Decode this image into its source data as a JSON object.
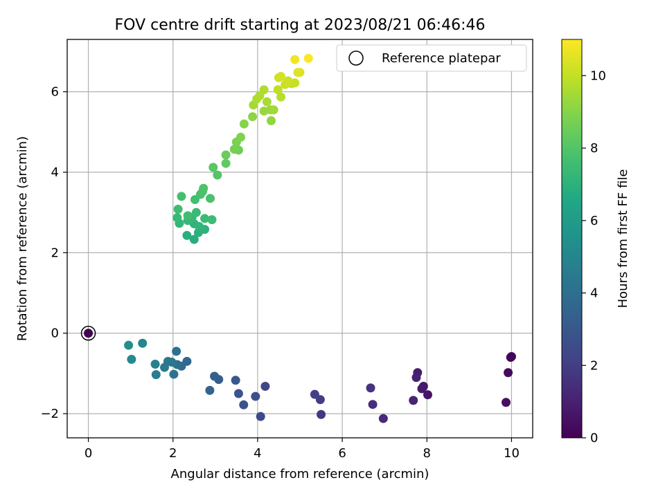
{
  "chart_data": {
    "type": "scatter",
    "title": "FOV centre drift starting at 2023/08/21 06:46:46",
    "xlabel": "Angular distance from reference (arcmin)",
    "ylabel": "Rotation from reference (arcmin)",
    "xlim": [
      -0.5,
      10.5
    ],
    "ylim": [
      -2.6,
      7.3
    ],
    "xticks": [
      0,
      2,
      4,
      6,
      8,
      10
    ],
    "yticks": [
      -2,
      0,
      2,
      4,
      6
    ],
    "xtick_labels": [
      "0",
      "2",
      "4",
      "6",
      "8",
      "10"
    ],
    "ytick_labels": [
      "−2",
      "0",
      "2",
      "4",
      "6"
    ],
    "grid": true,
    "legend": {
      "label": "Reference platepar",
      "placement": "top-right"
    },
    "reference_point": {
      "x": 0,
      "y": 0
    },
    "colorbar": {
      "label": "Hours from first FF file",
      "min": 0,
      "max": 11,
      "ticks": [
        0,
        2,
        4,
        6,
        8,
        10
      ],
      "tick_labels": [
        "0",
        "2",
        "4",
        "6",
        "8",
        "10"
      ],
      "colormap": "viridis"
    },
    "series": [
      {
        "points": [
          [
            0.0,
            0.0,
            0.0
          ],
          [
            10.0,
            -0.58,
            0.1
          ],
          [
            9.98,
            -0.6,
            0.15
          ],
          [
            9.92,
            -0.98,
            0.3
          ],
          [
            9.87,
            -1.72,
            0.45
          ],
          [
            8.02,
            -1.53,
            0.6
          ],
          [
            7.92,
            -1.32,
            0.7
          ],
          [
            7.88,
            -1.38,
            0.8
          ],
          [
            7.78,
            -0.98,
            0.9
          ],
          [
            7.75,
            -1.1,
            1.0
          ],
          [
            7.68,
            -1.67,
            1.1
          ],
          [
            6.97,
            -2.12,
            1.3
          ],
          [
            6.72,
            -1.77,
            1.45
          ],
          [
            6.67,
            -1.36,
            1.6
          ],
          [
            5.5,
            -2.02,
            1.8
          ],
          [
            5.48,
            -1.65,
            1.95
          ],
          [
            5.35,
            -1.52,
            2.1
          ],
          [
            4.18,
            -1.32,
            2.3
          ],
          [
            4.07,
            -2.07,
            2.45
          ],
          [
            3.95,
            -1.57,
            2.6
          ],
          [
            3.67,
            -1.78,
            2.75
          ],
          [
            3.55,
            -1.5,
            2.9
          ],
          [
            3.48,
            -1.17,
            3.05
          ],
          [
            3.08,
            -1.15,
            3.2
          ],
          [
            2.98,
            -1.07,
            3.35
          ],
          [
            2.87,
            -1.42,
            3.5
          ],
          [
            2.33,
            -0.7,
            3.7
          ],
          [
            2.2,
            -0.82,
            3.85
          ],
          [
            2.1,
            -0.78,
            4.0
          ],
          [
            2.08,
            -0.45,
            4.1
          ],
          [
            2.02,
            -1.02,
            4.2
          ],
          [
            1.97,
            -0.72,
            4.3
          ],
          [
            1.88,
            -0.7,
            4.4
          ],
          [
            1.8,
            -0.85,
            4.5
          ],
          [
            1.6,
            -1.03,
            4.65
          ],
          [
            1.58,
            -0.77,
            4.8
          ],
          [
            1.28,
            -0.25,
            5.0
          ],
          [
            1.02,
            -0.65,
            5.2
          ],
          [
            0.95,
            -0.3,
            5.4
          ],
          [
            2.5,
            2.33,
            6.8
          ],
          [
            2.33,
            2.43,
            6.9
          ],
          [
            2.6,
            2.5,
            7.0
          ],
          [
            2.75,
            2.58,
            7.05
          ],
          [
            2.5,
            2.72,
            7.1
          ],
          [
            2.62,
            2.65,
            7.15
          ],
          [
            2.15,
            2.73,
            7.2
          ],
          [
            2.35,
            2.8,
            7.25
          ],
          [
            2.45,
            2.88,
            7.3
          ],
          [
            2.1,
            2.87,
            7.35
          ],
          [
            2.55,
            3.0,
            7.4
          ],
          [
            2.75,
            2.85,
            7.45
          ],
          [
            2.92,
            2.82,
            7.5
          ],
          [
            2.12,
            3.08,
            7.55
          ],
          [
            2.35,
            2.92,
            7.6
          ],
          [
            2.52,
            3.32,
            7.65
          ],
          [
            2.2,
            3.4,
            7.7
          ],
          [
            2.65,
            3.45,
            7.75
          ],
          [
            2.88,
            3.35,
            7.8
          ],
          [
            2.7,
            3.52,
            7.85
          ],
          [
            2.72,
            3.6,
            7.9
          ],
          [
            3.05,
            3.93,
            8.0
          ],
          [
            2.95,
            4.12,
            8.1
          ],
          [
            3.25,
            4.22,
            8.3
          ],
          [
            3.25,
            4.43,
            8.45
          ],
          [
            3.55,
            4.55,
            8.6
          ],
          [
            3.45,
            4.57,
            8.7
          ],
          [
            3.5,
            4.75,
            8.8
          ],
          [
            3.6,
            4.87,
            8.9
          ],
          [
            3.68,
            5.2,
            9.0
          ],
          [
            3.88,
            5.38,
            9.1
          ],
          [
            4.32,
            5.28,
            9.2
          ],
          [
            4.15,
            5.52,
            9.3
          ],
          [
            4.3,
            5.55,
            9.35
          ],
          [
            4.38,
            5.55,
            9.4
          ],
          [
            3.9,
            5.67,
            9.5
          ],
          [
            4.22,
            5.75,
            9.55
          ],
          [
            3.98,
            5.82,
            9.6
          ],
          [
            4.05,
            5.9,
            9.65
          ],
          [
            4.15,
            6.05,
            9.7
          ],
          [
            4.55,
            5.87,
            9.8
          ],
          [
            4.48,
            6.05,
            9.9
          ],
          [
            4.8,
            6.2,
            10.0
          ],
          [
            4.88,
            6.22,
            10.05
          ],
          [
            4.65,
            6.18,
            10.1
          ],
          [
            4.72,
            6.27,
            10.15
          ],
          [
            4.5,
            6.35,
            10.2
          ],
          [
            4.55,
            6.38,
            10.3
          ],
          [
            4.95,
            6.48,
            10.4
          ],
          [
            5.0,
            6.48,
            10.5
          ],
          [
            4.88,
            6.8,
            10.75
          ],
          [
            5.2,
            6.83,
            10.95
          ]
        ]
      }
    ]
  }
}
